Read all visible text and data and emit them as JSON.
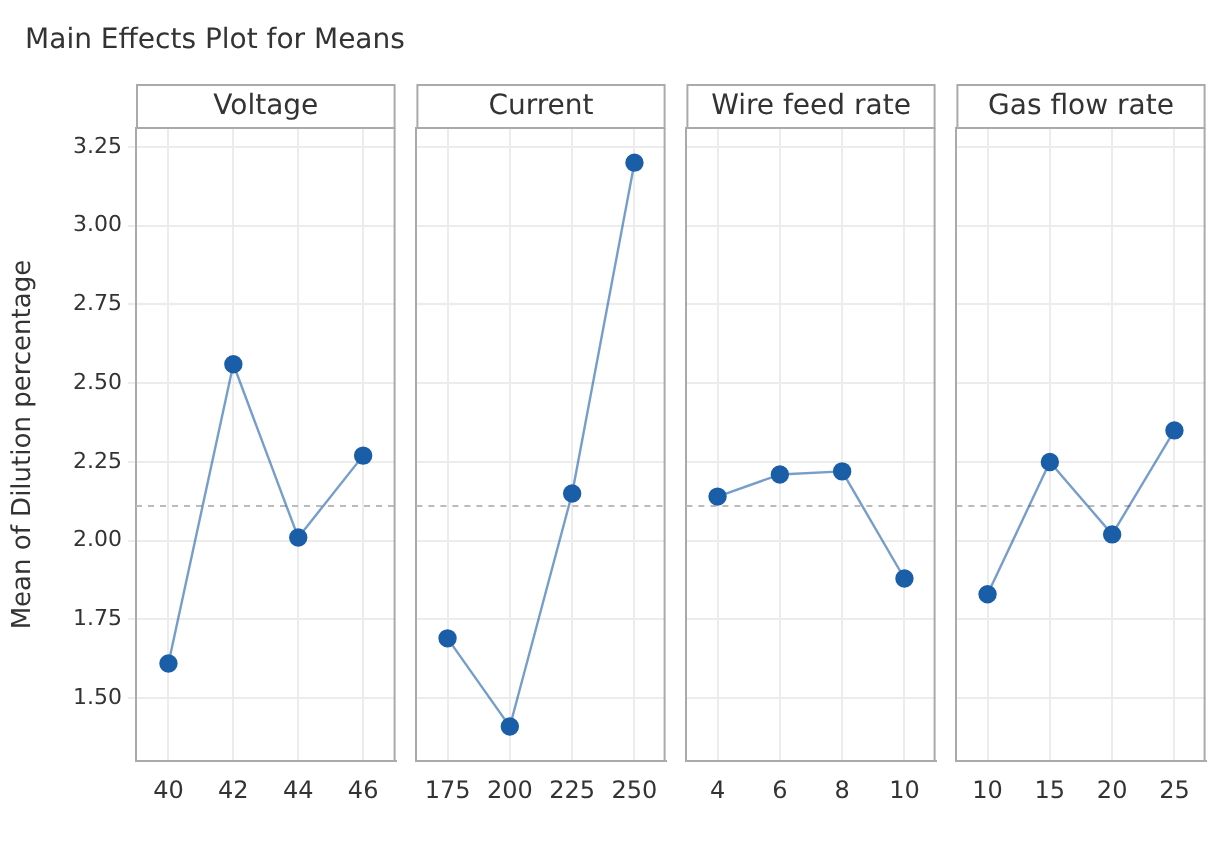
{
  "chart_data": [
    {
      "type": "line",
      "title": "Main Effects Plot for Means",
      "subtitle": "Voltage",
      "ylabel": "Mean of Dilution percentage",
      "categories": [
        "40",
        "42",
        "44",
        "46"
      ],
      "values": [
        1.61,
        2.56,
        2.01,
        2.27
      ],
      "color": "#1a5ea8",
      "ylim": [
        1.3,
        3.31
      ],
      "yticks": [
        {
          "value": 1.5,
          "label": "1.50"
        },
        {
          "value": 1.75,
          "label": "1.75"
        },
        {
          "value": 2.0,
          "label": "2.00"
        },
        {
          "value": 2.25,
          "label": "2.25"
        },
        {
          "value": 2.5,
          "label": "2.50"
        },
        {
          "value": 2.75,
          "label": "2.75"
        },
        {
          "value": 3.0,
          "label": "3.00"
        },
        {
          "value": 3.25,
          "label": "3.25"
        }
      ],
      "ref_lines": [
        {
          "axis": "y",
          "value": 2.11,
          "line_style": "dashed",
          "color": "#bbbbbb"
        }
      ],
      "marker": "circle",
      "grid": true
    },
    {
      "type": "line",
      "subtitle": "Current",
      "categories": [
        "175",
        "200",
        "225",
        "250"
      ],
      "values": [
        1.69,
        1.41,
        2.15,
        3.2
      ],
      "color": "#1a5ea8",
      "ylim": [
        1.3,
        3.31
      ],
      "yticks": [
        1.5,
        1.75,
        2,
        2.25,
        2.5,
        2.75,
        3,
        3.25
      ],
      "ref_lines": [
        {
          "axis": "y",
          "value": 2.11,
          "line_style": "dashed",
          "color": "#bbbbbb"
        }
      ],
      "marker": "circle",
      "grid": true,
      "tick_labels": "x"
    },
    {
      "type": "line",
      "subtitle": "Wire feed rate",
      "categories": [
        "4",
        "6",
        "8",
        "10"
      ],
      "values": [
        2.14,
        2.21,
        2.22,
        1.88
      ],
      "color": "#1a5ea8",
      "ylim": [
        1.3,
        3.31
      ],
      "yticks": [
        1.5,
        1.75,
        2,
        2.25,
        2.5,
        2.75,
        3,
        3.25
      ],
      "ref_lines": [
        {
          "axis": "y",
          "value": 2.11,
          "line_style": "dashed",
          "color": "#bbbbbb"
        }
      ],
      "marker": "circle",
      "grid": true,
      "tick_labels": "x"
    },
    {
      "type": "line",
      "subtitle": "Gas flow rate",
      "categories": [
        "10",
        "15",
        "20",
        "25"
      ],
      "values": [
        1.83,
        2.25,
        2.02,
        2.35
      ],
      "color": "#1a5ea8",
      "ylim": [
        1.3,
        3.31
      ],
      "yticks": [
        1.5,
        1.75,
        2,
        2.25,
        2.5,
        2.75,
        3,
        3.25
      ],
      "ref_lines": [
        {
          "axis": "y",
          "value": 2.11,
          "line_style": "dashed",
          "color": "#bbbbbb"
        }
      ],
      "marker": "circle",
      "grid": true,
      "tick_labels": "x"
    }
  ]
}
